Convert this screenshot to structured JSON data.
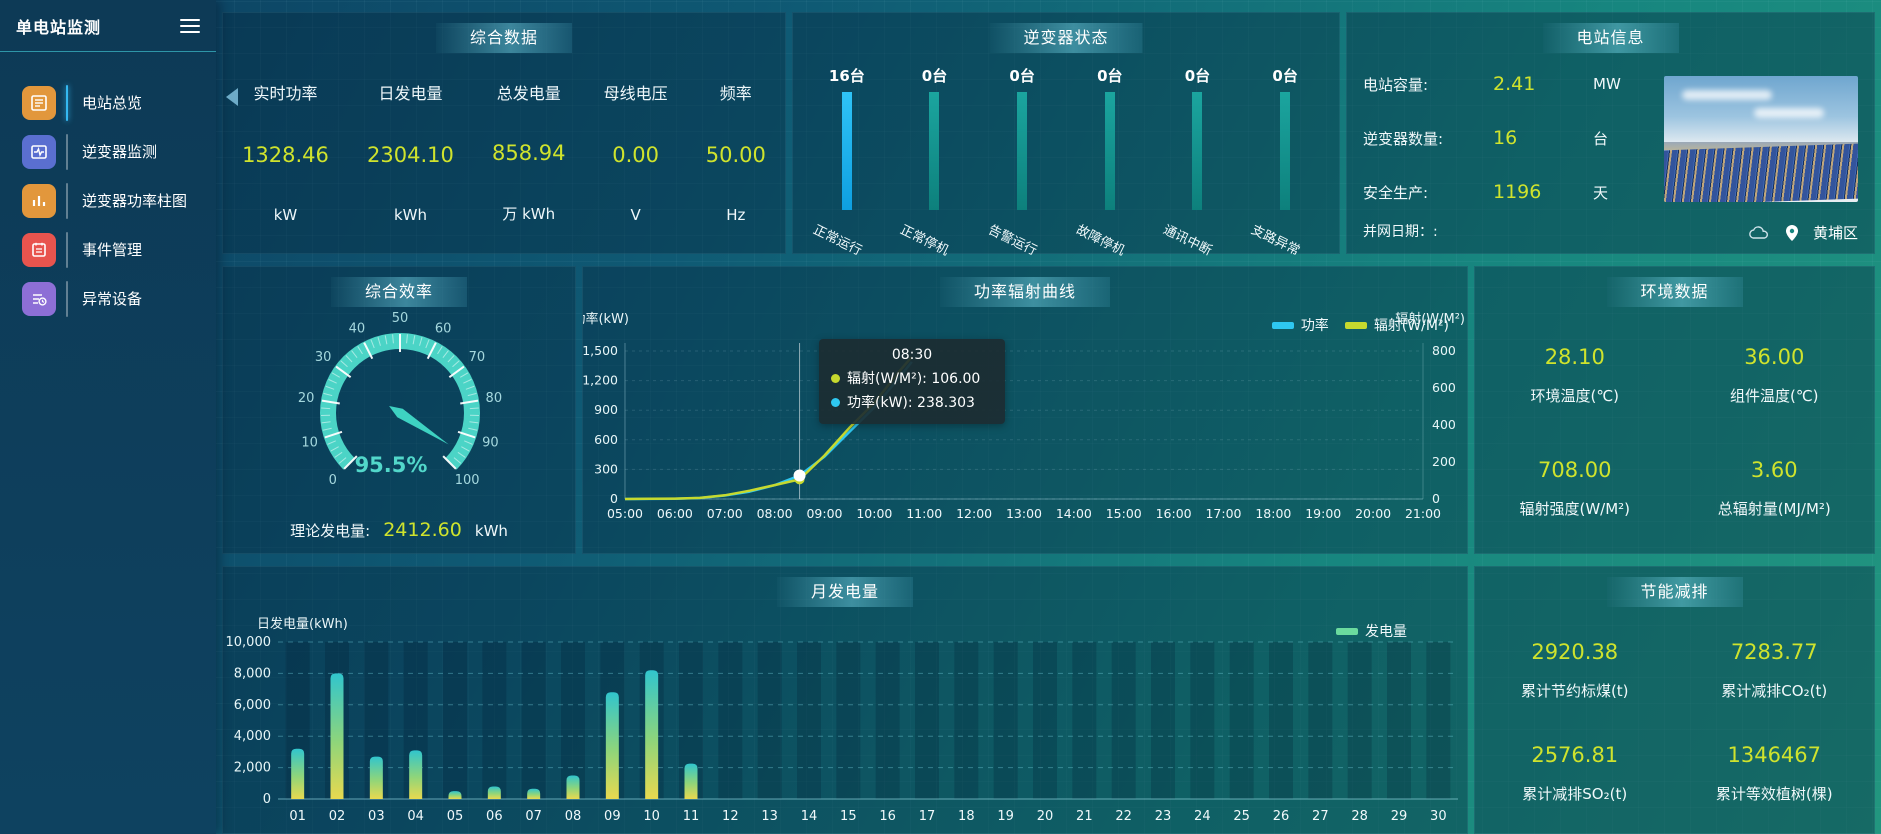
{
  "app": {
    "title": "单电站监测"
  },
  "sidebar": {
    "items": [
      {
        "label": "电站总览",
        "active": true
      },
      {
        "label": "逆变器监测",
        "active": false
      },
      {
        "label": "逆变器功率柱图",
        "active": false
      },
      {
        "label": "事件管理",
        "active": false
      },
      {
        "label": "异常设备",
        "active": false
      }
    ]
  },
  "overview": {
    "title": "综合数据",
    "stats": [
      {
        "label": "实时功率",
        "value": "1328.46",
        "unit": "kW"
      },
      {
        "label": "日发电量",
        "value": "2304.10",
        "unit": "kWh"
      },
      {
        "label": "总发电量",
        "value": "858.94",
        "unit": "万 kWh"
      },
      {
        "label": "母线电压",
        "value": "0.00",
        "unit": "V"
      },
      {
        "label": "频率",
        "value": "50.00",
        "unit": "Hz"
      }
    ]
  },
  "inverter_status": {
    "title": "逆变器状态",
    "active_color": "#1db8f0",
    "idle_color": "#128a86",
    "bars": [
      {
        "count": "16台",
        "label": "正常运行"
      },
      {
        "count": "0台",
        "label": "正常停机"
      },
      {
        "count": "0台",
        "label": "告警运行"
      },
      {
        "count": "0台",
        "label": "故障停机"
      },
      {
        "count": "0台",
        "label": "通讯中断"
      },
      {
        "count": "0台",
        "label": "支路异常"
      }
    ]
  },
  "station_info": {
    "title": "电站信息",
    "rows": [
      {
        "label": "电站容量:",
        "value": "2.41",
        "unit": "MW"
      },
      {
        "label": "逆变器数量:",
        "value": "16",
        "unit": "台"
      },
      {
        "label": "安全生产:",
        "value": "1196",
        "unit": "天"
      }
    ],
    "grid_date": "并网日期：:",
    "district": "黄埔区"
  },
  "efficiency": {
    "title": "综合效率",
    "value_label": "95.5%",
    "footer_label": "理论发电量:",
    "footer_value": "2412.60",
    "footer_unit": "kWh"
  },
  "power_curve": {
    "title": "功率辐射曲线",
    "tooltip": {
      "time": "08:30",
      "line1": "辐射(W/M²): 106.00",
      "line2": "功率(kW): 238.303"
    }
  },
  "environment": {
    "title": "环境数据",
    "items": [
      {
        "value": "28.10",
        "label": "环境温度(℃)"
      },
      {
        "value": "36.00",
        "label": "组件温度(℃)"
      },
      {
        "value": "708.00",
        "label": "辐射强度(W/M²)"
      },
      {
        "value": "3.60",
        "label": "总辐射量(MJ/M²)"
      }
    ]
  },
  "monthly": {
    "title": "月发电量"
  },
  "saving": {
    "title": "节能减排",
    "items": [
      {
        "value": "2920.38",
        "label": "累计节约标煤(t)"
      },
      {
        "value": "7283.77",
        "label": "累计减排CO₂(t)"
      },
      {
        "value": "2576.81",
        "label": "累计减排SO₂(t)"
      },
      {
        "value": "1346467",
        "label": "累计等效植树(棵)"
      }
    ]
  },
  "chart_data": [
    {
      "type": "gauge",
      "title": "综合效率",
      "min": 0,
      "max": 100,
      "tick_step": 10,
      "value": 95.5,
      "value_label": "95.5%",
      "arc_color": "#4bd4c6",
      "label_color": "#a5d8de"
    },
    {
      "type": "line",
      "title": "功率辐射曲线",
      "x_ticks": [
        "05:00",
        "06:00",
        "07:00",
        "08:00",
        "09:00",
        "10:00",
        "11:00",
        "12:00",
        "13:00",
        "14:00",
        "15:00",
        "16:00",
        "17:00",
        "18:00",
        "19:00",
        "20:00",
        "21:00"
      ],
      "ylabel_left": "功率(kW)",
      "ylim_left": [
        0,
        1500
      ],
      "ytick_step_left": 300,
      "ylabel_right": "辐射(W/M²)",
      "ylim_right": [
        0,
        800
      ],
      "ytick_step_right": 200,
      "series": [
        {
          "name": "功率",
          "color": "#2ec7f0",
          "axis": "left",
          "points": [
            [
              5,
              0
            ],
            [
              5.5,
              1
            ],
            [
              6,
              3
            ],
            [
              6.5,
              10
            ],
            [
              7,
              35
            ],
            [
              7.5,
              75
            ],
            [
              8,
              140
            ],
            [
              8.5,
              238.3
            ],
            [
              9,
              430
            ],
            [
              9.5,
              680
            ],
            [
              10,
              930
            ],
            [
              10.5,
              1230
            ],
            [
              10.75,
              1390
            ]
          ]
        },
        {
          "name": "辐射(W/M²)",
          "color": "#c6d92e",
          "axis": "right",
          "points": [
            [
              5,
              0
            ],
            [
              5.5,
              1
            ],
            [
              6,
              2
            ],
            [
              6.5,
              6
            ],
            [
              7,
              20
            ],
            [
              7.5,
              45
            ],
            [
              8,
              75
            ],
            [
              8.5,
              106
            ],
            [
              9,
              235
            ],
            [
              9.5,
              385
            ],
            [
              10,
              520
            ],
            [
              10.5,
              690
            ],
            [
              10.75,
              768
            ]
          ]
        }
      ],
      "tooltip": {
        "time": "08:30",
        "x": 8.5,
        "power": 238.303,
        "radiation": 106.0
      }
    },
    {
      "type": "bar",
      "title": "月发电量",
      "legend": "发电量",
      "legend_color": "#6bdA9e",
      "ylabel": "日发电量(kWh)",
      "ylim": [
        0,
        10000
      ],
      "ytick_step": 2000,
      "categories": [
        "01",
        "02",
        "03",
        "04",
        "05",
        "06",
        "07",
        "08",
        "09",
        "10",
        "11",
        "12",
        "13",
        "14",
        "15",
        "16",
        "17",
        "18",
        "19",
        "20",
        "21",
        "22",
        "23",
        "24",
        "25",
        "26",
        "27",
        "28",
        "29",
        "30"
      ],
      "values": [
        3200,
        8000,
        2700,
        3100,
        500,
        800,
        650,
        1500,
        6800,
        8200,
        2250,
        0,
        0,
        0,
        0,
        0,
        0,
        0,
        0,
        0,
        0,
        0,
        0,
        0,
        0,
        0,
        0,
        0,
        0,
        0
      ],
      "bar_gradient": [
        "#e8d94f",
        "#8fd57a",
        "#31c5cd"
      ]
    }
  ]
}
